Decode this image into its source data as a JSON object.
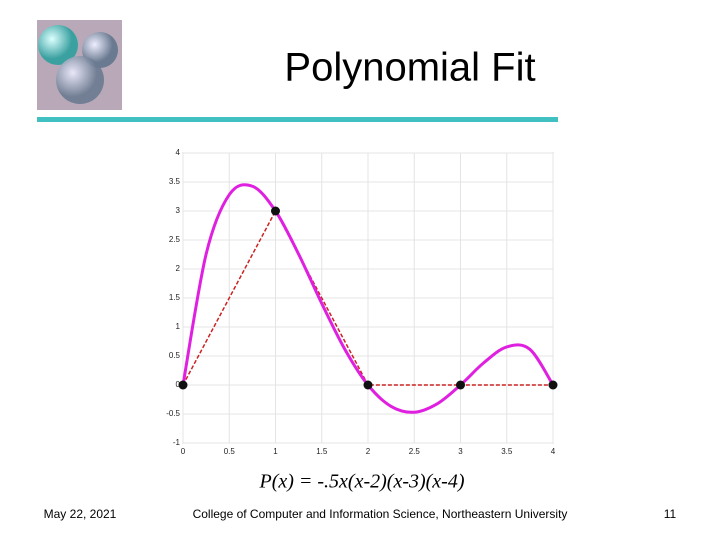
{
  "slide": {
    "title": "Polynomial Fit",
    "caption": "P(x) = -.5x(x-2)(x-3)(x-4)",
    "date": "May 22, 2021",
    "footer": "College of Computer and Information Science, Northeastern University",
    "page": "11"
  },
  "chart_data": {
    "type": "line",
    "xlim": [
      0,
      4
    ],
    "ylim": [
      -1,
      4
    ],
    "xticks": [
      0,
      0.5,
      1,
      1.5,
      2,
      2.5,
      3,
      3.5,
      4
    ],
    "yticks": [
      -1,
      -0.5,
      0,
      0.5,
      1,
      1.5,
      2,
      2.5,
      3,
      3.5,
      4
    ],
    "grid": true,
    "curve": {
      "color": "#e020e0",
      "x": [
        0,
        0.25,
        0.5,
        0.75,
        1,
        1.25,
        1.5,
        1.75,
        2,
        2.25,
        2.5,
        2.75,
        3,
        3.25,
        3.5,
        3.75,
        4
      ],
      "values": [
        0,
        2.256,
        3.281,
        3.427,
        3,
        2.256,
        1.406,
        0.615,
        0,
        -0.369,
        -0.469,
        -0.322,
        0,
        0.381,
        0.656,
        0.615,
        0
      ]
    },
    "points": {
      "color": "#111111",
      "line_color": "#cc2222",
      "x": [
        0,
        1,
        2,
        3,
        4
      ],
      "values": [
        0,
        3,
        0,
        0,
        0
      ]
    }
  }
}
